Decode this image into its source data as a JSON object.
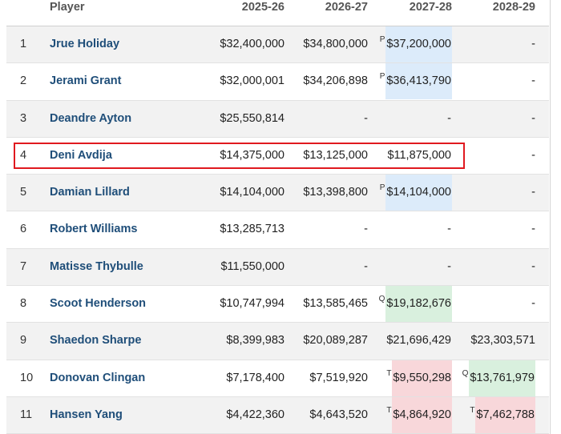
{
  "table": {
    "headers": [
      "Player",
      "2025-26",
      "2026-27",
      "2027-28",
      "2028-29"
    ],
    "rows": [
      {
        "rank": "1",
        "player": "Jrue Holiday",
        "y1": "$32,400,000",
        "y2": "$34,800,000",
        "y3": {
          "tag": "P",
          "value": "$37,200,000",
          "style": "blue"
        },
        "y4": "-"
      },
      {
        "rank": "2",
        "player": "Jerami Grant",
        "y1": "$32,000,001",
        "y2": "$34,206,898",
        "y3": {
          "tag": "P",
          "value": "$36,413,790",
          "style": "blue"
        },
        "y4": "-"
      },
      {
        "rank": "3",
        "player": "Deandre Ayton",
        "y1": "$25,550,814",
        "y2": "-",
        "y3": {
          "tag": "",
          "value": "-",
          "style": ""
        },
        "y4": "-"
      },
      {
        "rank": "4",
        "player": "Deni Avdija",
        "y1": "$14,375,000",
        "y2": "$13,125,000",
        "y3": {
          "tag": "",
          "value": "$11,875,000",
          "style": ""
        },
        "y4": "-"
      },
      {
        "rank": "5",
        "player": "Damian Lillard",
        "y1": "$14,104,000",
        "y2": "$13,398,800",
        "y3": {
          "tag": "P",
          "value": "$14,104,000",
          "style": "blue"
        },
        "y4": "-"
      },
      {
        "rank": "6",
        "player": "Robert Williams",
        "y1": "$13,285,713",
        "y2": "-",
        "y3": {
          "tag": "",
          "value": "-",
          "style": ""
        },
        "y4": "-"
      },
      {
        "rank": "7",
        "player": "Matisse Thybulle",
        "y1": "$11,550,000",
        "y2": "-",
        "y3": {
          "tag": "",
          "value": "-",
          "style": ""
        },
        "y4": "-"
      },
      {
        "rank": "8",
        "player": "Scoot Henderson",
        "y1": "$10,747,994",
        "y2": "$13,585,465",
        "y3": {
          "tag": "Q",
          "value": "$19,182,676",
          "style": "green"
        },
        "y4": "-"
      },
      {
        "rank": "9",
        "player": "Shaedon Sharpe",
        "y1": "$8,399,983",
        "y2": "$20,089,287",
        "y3": {
          "tag": "",
          "value": "$21,696,429",
          "style": ""
        },
        "y4": "$23,303,571"
      },
      {
        "rank": "10",
        "player": "Donovan Clingan",
        "y1": "$7,178,400",
        "y2": "$7,519,920",
        "y3": {
          "tag": "T",
          "value": "$9,550,298",
          "style": "red"
        },
        "y4": {
          "tag": "Q",
          "value": "$13,761,979",
          "style": "green"
        }
      },
      {
        "rank": "11",
        "player": "Hansen Yang",
        "y1": "$4,422,360",
        "y2": "$4,643,520",
        "y3": {
          "tag": "T",
          "value": "$4,864,920",
          "style": "red"
        },
        "y4": {
          "tag": "T",
          "value": "$7,462,788",
          "style": "red"
        }
      }
    ]
  },
  "annotation": {
    "highlighted_row": "4",
    "color": "#e0191f"
  }
}
